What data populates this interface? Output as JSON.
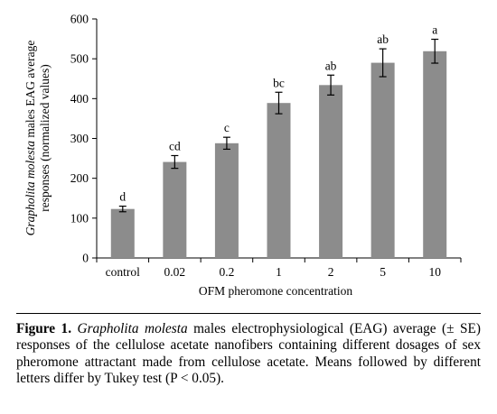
{
  "chart_data": {
    "type": "bar",
    "categories": [
      "control",
      "0.02",
      "0.2",
      "1",
      "2",
      "5",
      "10"
    ],
    "values": [
      123,
      241,
      288,
      389,
      434,
      490,
      519
    ],
    "errors": [
      7,
      16,
      15,
      27,
      25,
      35,
      30
    ],
    "letters": [
      "d",
      "cd",
      "c",
      "bc",
      "ab",
      "ab",
      "a"
    ],
    "ylim": [
      0,
      600
    ],
    "yticks": [
      0,
      100,
      200,
      300,
      400,
      500,
      600
    ],
    "xlabel": "OFM pheromone concentration",
    "ylabel_italic": "Grapholita molesta",
    "ylabel_rest": " males EAG average",
    "ylabel_line2": "responses (normalized values)",
    "bar_color": "#8c8c8c",
    "grid": false,
    "legend": "none"
  },
  "caption": {
    "label": "Figure 1.",
    "species": "Grapholita molesta",
    "text": " males electrophysiological (EAG) average (± SE) responses of the cellulose acetate nanofibers containing different dosages of sex pheromone attractant made from cellulose acetate. Means followed by different letters differ by Tukey test (P < 0.05)."
  }
}
